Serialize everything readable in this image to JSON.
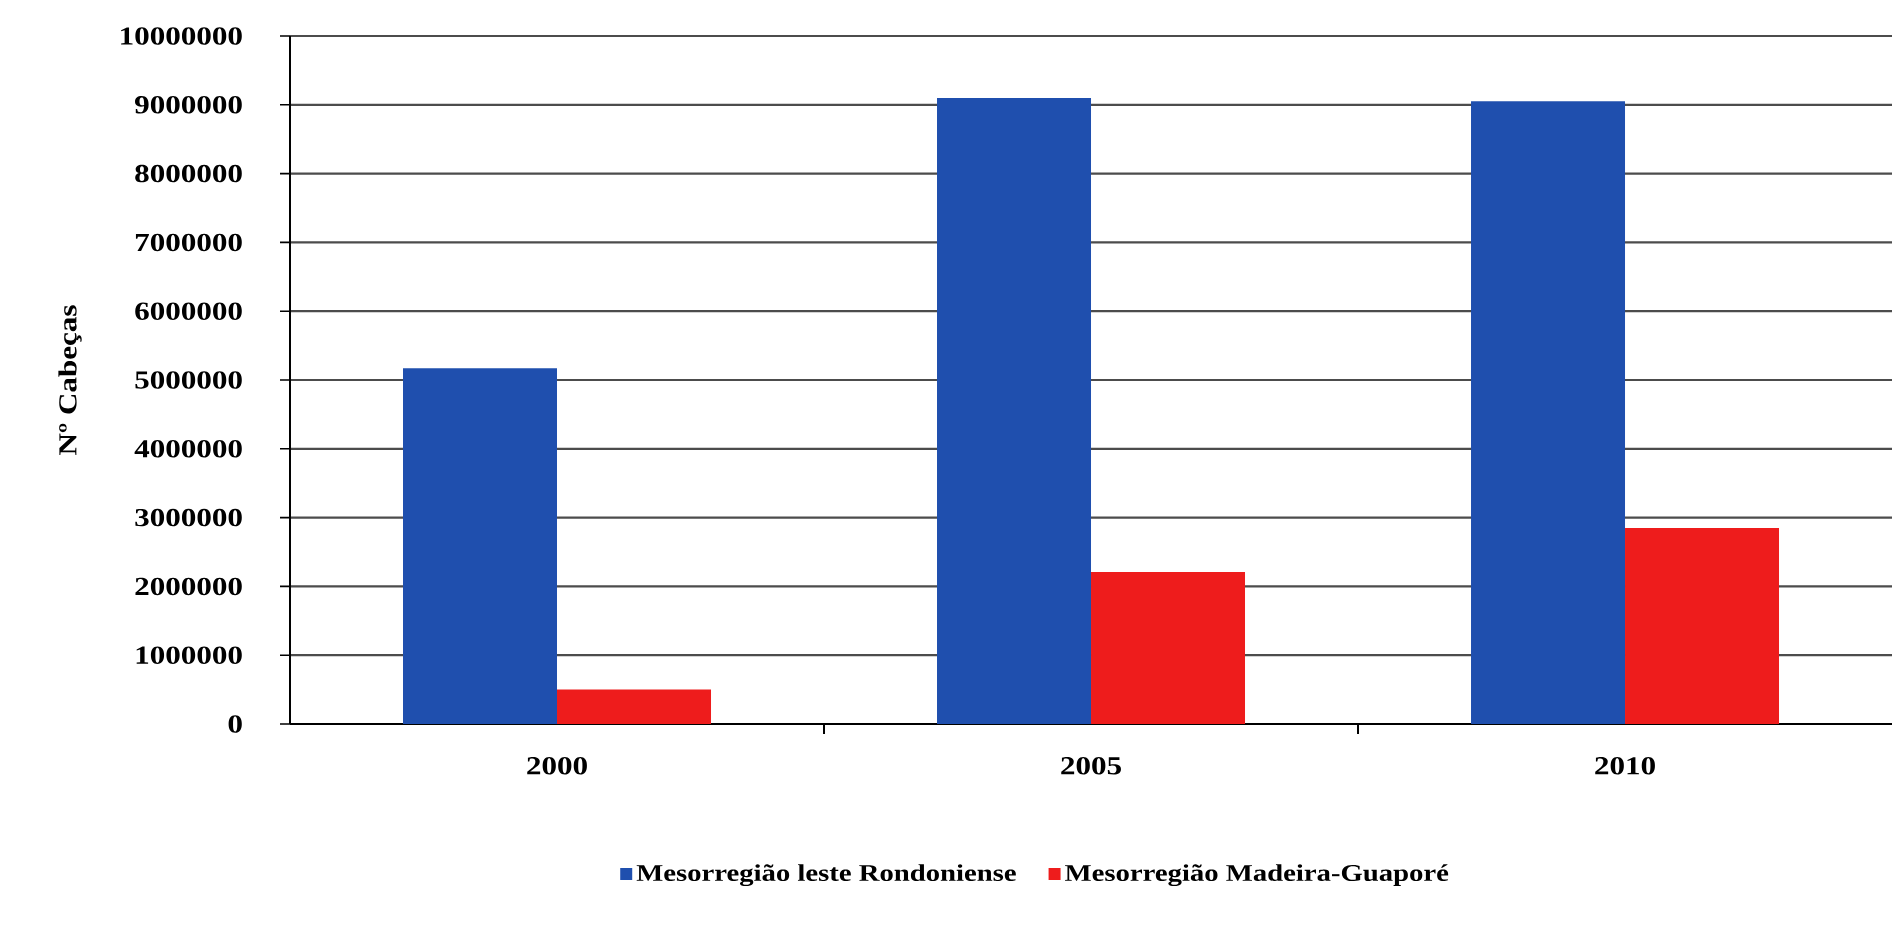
{
  "chart_data": {
    "type": "bar",
    "categories": [
      "2000",
      "2005",
      "2010"
    ],
    "ylabel": "Nº Cabeças",
    "series": [
      {
        "name": "Mesorregião leste Rondoniense",
        "color": "#1f4fae",
        "values": [
          5170000,
          9100000,
          9050000
        ]
      },
      {
        "name": "Mesorregião Madeira-Guaporé",
        "color": "#ee1c1c",
        "values": [
          500000,
          2210000,
          2850000
        ]
      }
    ],
    "ylim": [
      0,
      10000000
    ],
    "yticks": [
      0,
      1000000,
      2000000,
      3000000,
      4000000,
      5000000,
      6000000,
      7000000,
      8000000,
      9000000,
      10000000
    ],
    "grid": "y",
    "legend": "bottom"
  }
}
